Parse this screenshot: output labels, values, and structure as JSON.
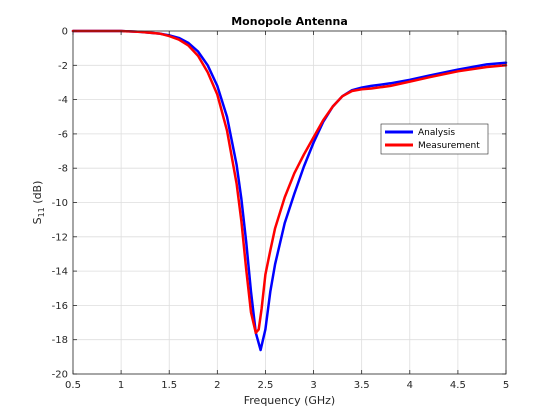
{
  "chart_data": {
    "type": "line",
    "title": "Monopole Antenna",
    "xlabel": "Frequency (GHz)",
    "ylabel_main": "S",
    "ylabel_sub": "11",
    "ylabel_unit": " (dB)",
    "xlim": [
      0.5,
      5
    ],
    "ylim": [
      -20,
      0
    ],
    "xticks": [
      "0.5",
      "1",
      "1.5",
      "2",
      "2.5",
      "3",
      "3.5",
      "4",
      "4.5",
      "5"
    ],
    "yticks": [
      "0",
      "-2",
      "-4",
      "-6",
      "-8",
      "-10",
      "-12",
      "-14",
      "-16",
      "-18",
      "-20"
    ],
    "grid": true,
    "legend_position": "right",
    "series": [
      {
        "name": "Analysis",
        "color": "#0000ff",
        "x": [
          0.5,
          1.0,
          1.2,
          1.4,
          1.5,
          1.6,
          1.7,
          1.8,
          1.9,
          2.0,
          2.1,
          2.2,
          2.25,
          2.3,
          2.35,
          2.4,
          2.45,
          2.5,
          2.55,
          2.6,
          2.7,
          2.8,
          2.9,
          3.0,
          3.1,
          3.2,
          3.3,
          3.4,
          3.5,
          3.6,
          3.8,
          4.0,
          4.2,
          4.5,
          4.8,
          5.0
        ],
        "y": [
          0,
          0,
          -0.05,
          -0.15,
          -0.25,
          -0.4,
          -0.7,
          -1.2,
          -2.0,
          -3.2,
          -5.0,
          -7.8,
          -9.8,
          -12.3,
          -15.2,
          -17.6,
          -18.6,
          -17.4,
          -15.2,
          -13.6,
          -11.2,
          -9.5,
          -7.9,
          -6.5,
          -5.3,
          -4.4,
          -3.8,
          -3.45,
          -3.3,
          -3.2,
          -3.05,
          -2.85,
          -2.6,
          -2.25,
          -1.95,
          -1.85
        ]
      },
      {
        "name": "Measurement",
        "color": "#ff0000",
        "x": [
          0.5,
          1.0,
          1.2,
          1.4,
          1.5,
          1.6,
          1.7,
          1.8,
          1.9,
          2.0,
          2.1,
          2.2,
          2.25,
          2.3,
          2.35,
          2.4,
          2.43,
          2.46,
          2.5,
          2.55,
          2.6,
          2.7,
          2.8,
          2.9,
          3.0,
          3.1,
          3.2,
          3.3,
          3.4,
          3.5,
          3.6,
          3.8,
          4.0,
          4.2,
          4.5,
          4.8,
          5.0
        ],
        "y": [
          0,
          0,
          -0.05,
          -0.15,
          -0.3,
          -0.5,
          -0.85,
          -1.45,
          -2.4,
          -3.7,
          -5.8,
          -8.9,
          -11.1,
          -13.9,
          -16.4,
          -17.6,
          -17.4,
          -16.2,
          -14.2,
          -12.8,
          -11.5,
          -9.7,
          -8.3,
          -7.2,
          -6.2,
          -5.2,
          -4.4,
          -3.8,
          -3.5,
          -3.4,
          -3.35,
          -3.2,
          -2.95,
          -2.7,
          -2.35,
          -2.1,
          -2.0
        ]
      }
    ]
  }
}
